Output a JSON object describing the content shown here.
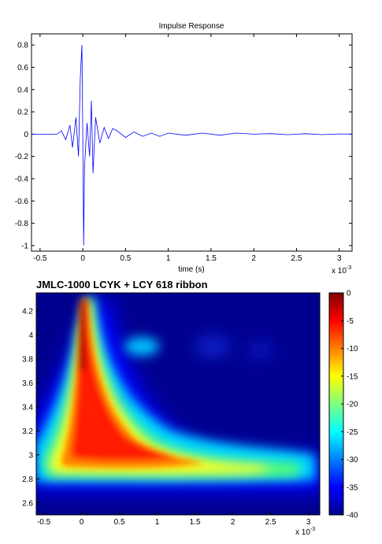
{
  "chart_data": [
    {
      "type": "line",
      "title": "Impulse Response",
      "xlabel": "time (s)",
      "ylabel": "",
      "x_multiplier_label": "x 10",
      "x_multiplier_exp": "-3",
      "xlim": [
        -0.6,
        3.15
      ],
      "ylim": [
        -1.05,
        0.9
      ],
      "xticks": [
        "-0.5",
        "0",
        "0.5",
        "1",
        "1.5",
        "2",
        "2.5",
        "3"
      ],
      "yticks": [
        "0.8",
        "0.6",
        "0.4",
        "0.2",
        "0",
        "-0.2",
        "-0.4",
        "-0.6",
        "-0.8",
        "-1"
      ],
      "series": [
        {
          "color": "#0000ff",
          "x": [
            -0.6,
            -0.3,
            -0.25,
            -0.2,
            -0.15,
            -0.12,
            -0.08,
            -0.05,
            -0.03,
            -0.01,
            0.0,
            0.01,
            0.02,
            0.05,
            0.08,
            0.1,
            0.12,
            0.15,
            0.2,
            0.25,
            0.3,
            0.35,
            0.4,
            0.5,
            0.6,
            0.7,
            0.8,
            0.9,
            1.0,
            1.2,
            1.4,
            1.6,
            1.8,
            2.0,
            2.2,
            2.4,
            2.6,
            2.8,
            3.0,
            3.15
          ],
          "y": [
            0.0,
            0.0,
            0.03,
            -0.05,
            0.08,
            -0.12,
            0.15,
            -0.2,
            0.5,
            0.8,
            0.0,
            -1.0,
            -0.3,
            0.1,
            -0.2,
            0.3,
            -0.35,
            0.15,
            -0.08,
            0.06,
            -0.04,
            0.05,
            0.03,
            -0.03,
            0.02,
            -0.02,
            0.01,
            -0.02,
            0.01,
            -0.01,
            0.01,
            -0.01,
            0.01,
            0.0,
            0.005,
            -0.005,
            0.004,
            -0.004,
            0.002,
            0.0
          ]
        }
      ]
    },
    {
      "type": "heatmap",
      "title": "JMLC-1000 LCYK + LCY 618 ribbon",
      "xlabel": "",
      "ylabel": "",
      "x_multiplier_label": "x 10",
      "x_multiplier_exp": "-3",
      "xlim": [
        -0.6,
        3.15
      ],
      "ylim": [
        2.5,
        4.35
      ],
      "xticks": [
        "-0.5",
        "0",
        "0.5",
        "1",
        "1.5",
        "2",
        "2.5",
        "3"
      ],
      "yticks": [
        "4.2",
        "4",
        "3.8",
        "3.6",
        "3.4",
        "3.2",
        "3",
        "2.8",
        "2.6"
      ],
      "colorbar": {
        "range": [
          -40,
          0
        ],
        "ticks": [
          "0",
          "-5",
          "-10",
          "-15",
          "-20",
          "-25",
          "-30",
          "-35",
          "-40"
        ]
      }
    }
  ]
}
